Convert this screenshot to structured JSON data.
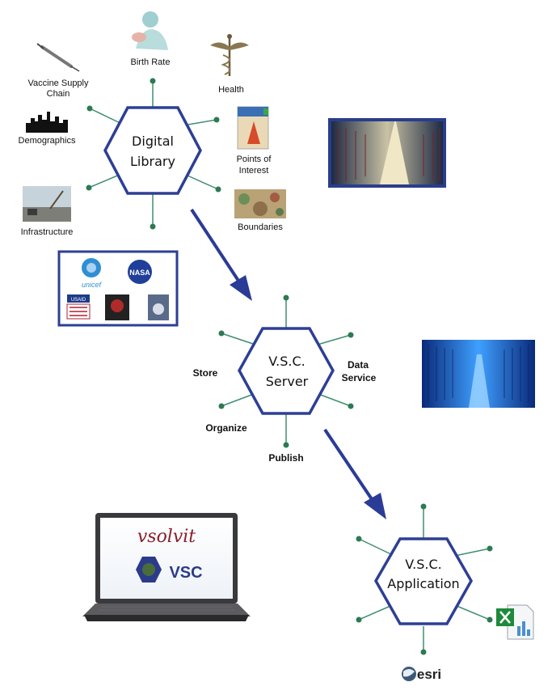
{
  "digital_library": {
    "title_line1": "Digital",
    "title_line2": "Library",
    "nodes": {
      "birth_rate": "Birth Rate",
      "health": "Health",
      "vaccine_line1": "Vaccine Supply",
      "vaccine_line2": "Chain",
      "demographics": "Demographics",
      "poi_line1": "Points of",
      "poi_line2": "Interest",
      "infrastructure": "Infrastructure",
      "boundaries": "Boundaries"
    }
  },
  "partners": {
    "unicef": "unicef",
    "nasa": "NASA",
    "usaid": "USAID"
  },
  "server": {
    "title_line1": "V.S.C.",
    "title_line2": "Server",
    "store": "Store",
    "data_line1": "Data",
    "data_line2": "Service",
    "organize": "Organize",
    "publish": "Publish"
  },
  "application": {
    "title_line1": "V.S.C.",
    "title_line2": "Application",
    "esri": "esri"
  },
  "laptop": {
    "brand": "vsolvit",
    "product": "VSC"
  },
  "colors": {
    "hex_stroke": "#2d3f95",
    "arrow": "#2a3c96",
    "spoke": "#3f8f6e",
    "spoke_dot": "#2d7a52"
  }
}
